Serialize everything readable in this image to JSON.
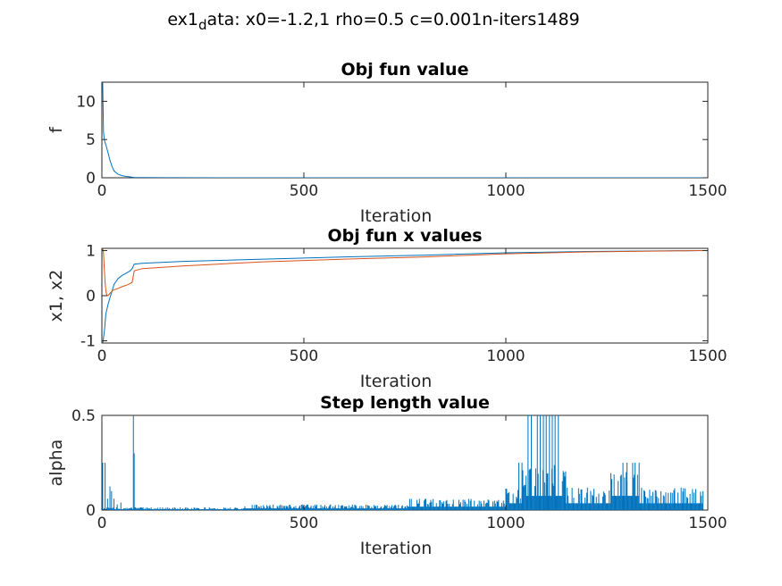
{
  "figure": {
    "suptitle_main": "ex1",
    "suptitle_sub": "d",
    "suptitle_rest": "ata: x0=-1.2,1 rho=0.5 c=0.001n-iters1489"
  },
  "colors": {
    "blue": "#0072bd",
    "red": "#d95319",
    "axis": "#262626"
  },
  "chart_data": [
    {
      "type": "line",
      "title": "Obj fun value",
      "xlabel": "Iteration",
      "ylabel": "f",
      "xlim": [
        0,
        1500
      ],
      "ylim": [
        0,
        12.5
      ],
      "xticks": [
        0,
        500,
        1000,
        1500
      ],
      "xtick_labels": [
        "0",
        "500",
        "1000",
        "1500"
      ],
      "yticks": [
        0,
        5,
        10
      ],
      "ytick_labels": [
        "0",
        "5",
        "10"
      ],
      "grid": false,
      "series": [
        {
          "color": "#0072bd",
          "x": [
            0,
            2,
            4,
            6,
            8,
            10,
            12,
            15,
            20,
            25,
            30,
            40,
            50,
            60,
            70,
            80,
            100,
            150,
            300,
            600,
            1000,
            1100,
            1489
          ],
          "y": [
            12.5,
            12.5,
            6.0,
            5.0,
            4.6,
            4.3,
            3.9,
            3.3,
            2.3,
            1.5,
            0.9,
            0.45,
            0.28,
            0.18,
            0.12,
            0.04,
            0.02,
            0.01,
            0.005,
            0.003,
            0.001,
            0.0005,
            0.0
          ]
        }
      ]
    },
    {
      "type": "line",
      "title": "Obj fun x values",
      "xlabel": "Iteration",
      "ylabel": "x1, x2",
      "xlim": [
        0,
        1500
      ],
      "ylim": [
        -1.05,
        1.05
      ],
      "xticks": [
        0,
        500,
        1000,
        1500
      ],
      "xtick_labels": [
        "0",
        "500",
        "1000",
        "1500"
      ],
      "yticks": [
        -1,
        0,
        1
      ],
      "ytick_labels": [
        "-1",
        "0",
        "1"
      ],
      "grid": false,
      "series": [
        {
          "color": "#0072bd",
          "x": [
            0,
            3,
            6,
            10,
            15,
            20,
            25,
            30,
            40,
            50,
            60,
            70,
            75,
            80,
            100,
            200,
            400,
            600,
            800,
            1000,
            1200,
            1489
          ],
          "y": [
            -1.2,
            -1.0,
            -0.8,
            -0.4,
            -0.2,
            -0.05,
            0.1,
            0.25,
            0.38,
            0.45,
            0.5,
            0.55,
            0.6,
            0.7,
            0.72,
            0.76,
            0.81,
            0.86,
            0.9,
            0.95,
            0.98,
            1.0
          ]
        },
        {
          "color": "#d95319",
          "x": [
            0,
            2,
            4,
            6,
            8,
            10,
            12,
            15,
            20,
            25,
            30,
            40,
            50,
            60,
            70,
            75,
            80,
            100,
            200,
            400,
            600,
            800,
            1000,
            1200,
            1489
          ],
          "y": [
            1.0,
            1.05,
            0.95,
            0.6,
            0.3,
            0.1,
            0.02,
            0.0,
            0.05,
            0.1,
            0.13,
            0.16,
            0.2,
            0.23,
            0.27,
            0.3,
            0.55,
            0.6,
            0.66,
            0.75,
            0.81,
            0.86,
            0.93,
            0.97,
            1.0
          ]
        }
      ]
    },
    {
      "type": "bar",
      "title": "Step length value",
      "xlabel": "Iteration",
      "ylabel": "alpha",
      "xlim": [
        0,
        1500
      ],
      "ylim": [
        0,
        0.5
      ],
      "xticks": [
        0,
        500,
        1000,
        1500
      ],
      "xtick_labels": [
        "0",
        "500",
        "1000",
        "1500"
      ],
      "yticks": [
        0,
        0.5
      ],
      "ytick_labels": [
        "0",
        "0.5"
      ],
      "grid": false,
      "series": [
        {
          "color": "#0072bd",
          "description_free": true,
          "spikes": [
            {
              "x": 2,
              "y": 0.25
            },
            {
              "x": 8,
              "y": 0.25
            },
            {
              "x": 14,
              "y": 0.06
            },
            {
              "x": 20,
              "y": 0.125
            },
            {
              "x": 24,
              "y": 0.1
            },
            {
              "x": 30,
              "y": 0.06
            },
            {
              "x": 38,
              "y": 0.03
            },
            {
              "x": 47,
              "y": 0.04
            },
            {
              "x": 78,
              "y": 0.5
            },
            {
              "x": 80,
              "y": 0.3
            }
          ],
          "segments": [
            {
              "x0": 0,
              "x1": 350,
              "level": 0.015
            },
            {
              "x0": 350,
              "x1": 760,
              "level": 0.03
            },
            {
              "x0": 760,
              "x1": 1000,
              "level": 0.06
            },
            {
              "x0": 1000,
              "x1": 1040,
              "level": 0.12
            },
            {
              "x0": 1040,
              "x1": 1150,
              "level": 0.25
            },
            {
              "x0": 1150,
              "x1": 1260,
              "level": 0.12
            },
            {
              "x0": 1260,
              "x1": 1330,
              "level": 0.25
            },
            {
              "x0": 1330,
              "x1": 1489,
              "level": 0.12
            }
          ],
          "tall": [
            {
              "x": 1055,
              "y": 0.5
            },
            {
              "x": 1063,
              "y": 0.5
            },
            {
              "x": 1078,
              "y": 0.5
            },
            {
              "x": 1085,
              "y": 0.5
            },
            {
              "x": 1093,
              "y": 0.5
            },
            {
              "x": 1100,
              "y": 0.5
            },
            {
              "x": 1108,
              "y": 0.5
            },
            {
              "x": 1115,
              "y": 0.5
            },
            {
              "x": 1122,
              "y": 0.5
            },
            {
              "x": 1130,
              "y": 0.5
            },
            {
              "x": 1032,
              "y": 0.25
            },
            {
              "x": 1040,
              "y": 0.25
            },
            {
              "x": 1290,
              "y": 0.25
            },
            {
              "x": 1300,
              "y": 0.25
            },
            {
              "x": 1320,
              "y": 0.25
            },
            {
              "x": 1330,
              "y": 0.25
            }
          ]
        }
      ]
    }
  ]
}
